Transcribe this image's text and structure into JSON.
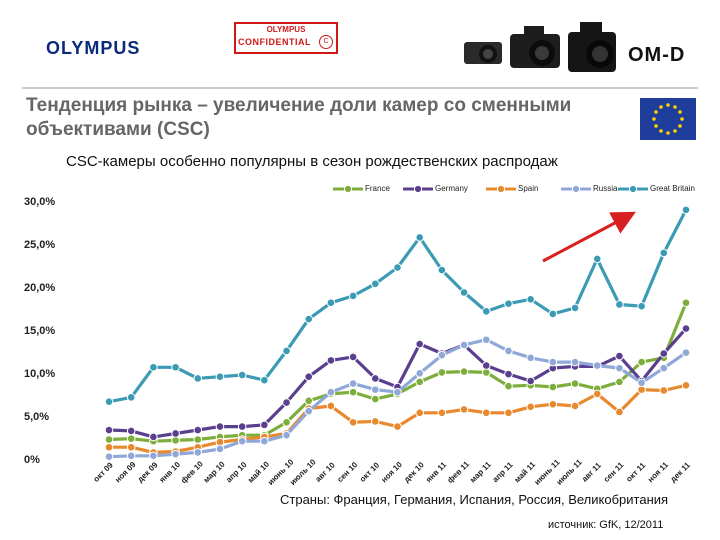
{
  "header": {
    "brand": "OLYMPUS",
    "stamp_brand": "OLYMPUS",
    "stamp_text": "CONFIDENTIAL",
    "stamp_mark": "C",
    "product": "OM-D"
  },
  "slide": {
    "title": "Тенденция рынка – увеличение доли камер со сменными объективами (CSC)",
    "subtitle": "CSC-камеры особенно популярны в сезон рождественских распродаж",
    "caption": "Страны: Франция, Германия, Испания, Россия, Великобритания",
    "source": "источник: GfK, 12/2011"
  },
  "chart_data": {
    "type": "line",
    "title": "",
    "xlabel": "",
    "ylabel": "",
    "ylim": [
      0,
      30
    ],
    "y_ticks": [
      "0%",
      "5,0%",
      "10,0%",
      "15,0%",
      "20,0%",
      "25,0%",
      "30,0%"
    ],
    "grid": false,
    "legend_position": "top",
    "categories": [
      "окт 09",
      "ноя 09",
      "дек 09",
      "янв 10",
      "фев 10",
      "мар 10",
      "апр 10",
      "май 10",
      "июнь 10",
      "июль 10",
      "авг 10",
      "сен 10",
      "окт 10",
      "ноя 10",
      "дек 10",
      "янв 11",
      "фев 11",
      "мар 11",
      "апр 11",
      "май 11",
      "июнь 11",
      "июль 11",
      "авг 11",
      "сен 11",
      "окт 11",
      "ноя 11",
      "дек 11"
    ],
    "series": [
      {
        "name": "France",
        "color": "#7dae3c",
        "values": [
          2.5,
          2.6,
          2.3,
          2.4,
          2.5,
          2.8,
          3.0,
          3.0,
          4.5,
          7.0,
          7.8,
          8.0,
          7.2,
          7.8,
          9.2,
          10.3,
          10.4,
          10.3,
          8.7,
          8.8,
          8.6,
          9.0,
          8.4,
          9.2,
          11.5,
          12.0,
          18.4
        ]
      },
      {
        "name": "Germany",
        "color": "#5b3f8f",
        "values": [
          3.6,
          3.5,
          2.8,
          3.2,
          3.6,
          4.0,
          4.0,
          4.2,
          6.8,
          9.8,
          11.7,
          12.1,
          9.6,
          8.6,
          13.6,
          12.5,
          13.5,
          11.1,
          10.1,
          9.3,
          10.8,
          11.0,
          11.0,
          12.2,
          9.3,
          12.5,
          15.4
        ]
      },
      {
        "name": "Spain",
        "color": "#e8892e",
        "values": [
          1.6,
          1.6,
          1.0,
          1.1,
          1.6,
          2.2,
          2.5,
          2.8,
          3.2,
          6.1,
          6.4,
          4.5,
          4.6,
          4.0,
          5.6,
          5.6,
          6.0,
          5.6,
          5.6,
          6.3,
          6.6,
          6.4,
          7.8,
          5.7,
          8.3,
          8.2,
          8.8
        ]
      },
      {
        "name": "Russia",
        "color": "#8fa8d8",
        "values": [
          0.5,
          0.6,
          0.6,
          0.8,
          1.0,
          1.4,
          2.3,
          2.3,
          3.0,
          5.8,
          8.0,
          9.0,
          8.3,
          8.0,
          10.2,
          12.3,
          13.5,
          14.1,
          12.8,
          12.0,
          11.5,
          11.5,
          11.1,
          10.8,
          9.1,
          10.8,
          12.6
        ]
      },
      {
        "name": "Great Britain",
        "color": "#3c9bb4",
        "values": [
          6.9,
          7.4,
          10.9,
          10.9,
          9.6,
          9.8,
          10.0,
          9.4,
          12.8,
          16.5,
          18.4,
          19.2,
          20.6,
          22.5,
          26.0,
          22.2,
          19.6,
          17.4,
          18.3,
          18.8,
          17.1,
          17.8,
          23.5,
          18.2,
          18.0,
          24.2,
          29.2
        ]
      }
    ]
  }
}
